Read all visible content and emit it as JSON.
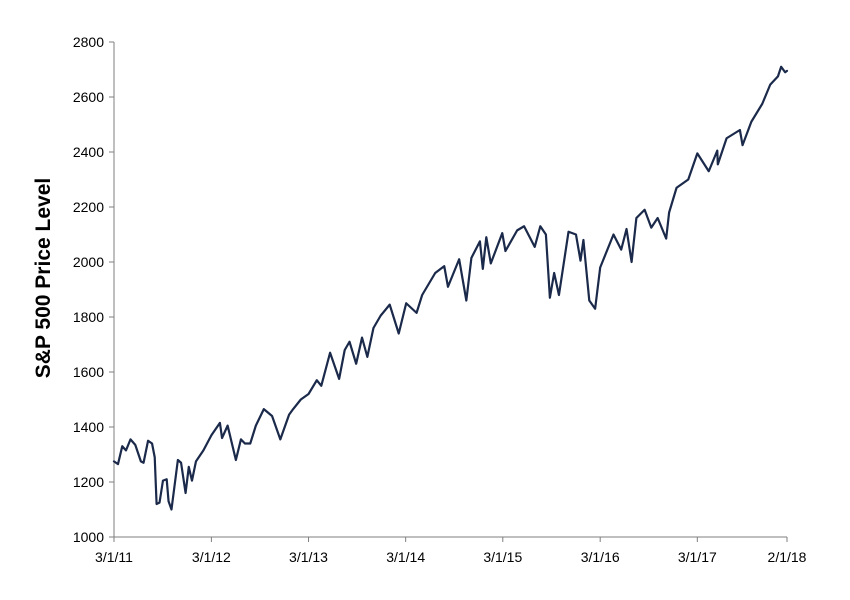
{
  "chart_data": {
    "type": "line",
    "title": "",
    "xlabel": "",
    "ylabel": "S&P 500 Price Level",
    "ylim": [
      1000,
      2800
    ],
    "yticks": [
      1000,
      1200,
      1400,
      1600,
      1800,
      2000,
      2200,
      2400,
      2600,
      2800
    ],
    "xlim": [
      "2011-03-01",
      "2018-02-01"
    ],
    "xticks": [
      {
        "date": "2011-03-01",
        "label": "3/1/11"
      },
      {
        "date": "2012-03-01",
        "label": "3/1/12"
      },
      {
        "date": "2013-03-01",
        "label": "3/1/13"
      },
      {
        "date": "2014-03-01",
        "label": "3/1/14"
      },
      {
        "date": "2015-03-01",
        "label": "3/1/15"
      },
      {
        "date": "2016-03-01",
        "label": "3/1/16"
      },
      {
        "date": "2017-03-01",
        "label": "3/1/17"
      },
      {
        "date": "2018-02-01",
        "label": "2/1/18"
      }
    ],
    "grid": false,
    "legend": "none",
    "series": [
      {
        "color": "#1b2a4a",
        "points": [
          [
            "2011-03-01",
            1275
          ],
          [
            "2011-03-16",
            1265
          ],
          [
            "2011-04-01",
            1330
          ],
          [
            "2011-04-15",
            1315
          ],
          [
            "2011-05-02",
            1355
          ],
          [
            "2011-05-20",
            1335
          ],
          [
            "2011-06-10",
            1275
          ],
          [
            "2011-06-20",
            1270
          ],
          [
            "2011-07-07",
            1350
          ],
          [
            "2011-07-22",
            1340
          ],
          [
            "2011-08-01",
            1290
          ],
          [
            "2011-08-08",
            1120
          ],
          [
            "2011-08-19",
            1125
          ],
          [
            "2011-09-01",
            1205
          ],
          [
            "2011-09-15",
            1210
          ],
          [
            "2011-09-22",
            1130
          ],
          [
            "2011-10-03",
            1100
          ],
          [
            "2011-10-27",
            1280
          ],
          [
            "2011-11-08",
            1270
          ],
          [
            "2011-11-25",
            1160
          ],
          [
            "2011-12-07",
            1255
          ],
          [
            "2011-12-19",
            1205
          ],
          [
            "2012-01-03",
            1275
          ],
          [
            "2012-01-31",
            1315
          ],
          [
            "2012-03-01",
            1370
          ],
          [
            "2012-04-02",
            1415
          ],
          [
            "2012-04-10",
            1360
          ],
          [
            "2012-05-01",
            1405
          ],
          [
            "2012-06-01",
            1280
          ],
          [
            "2012-06-20",
            1355
          ],
          [
            "2012-07-05",
            1340
          ],
          [
            "2012-07-25",
            1340
          ],
          [
            "2012-08-15",
            1405
          ],
          [
            "2012-09-14",
            1465
          ],
          [
            "2012-10-15",
            1440
          ],
          [
            "2012-11-15",
            1355
          ],
          [
            "2012-12-18",
            1445
          ],
          [
            "2013-01-02",
            1465
          ],
          [
            "2013-01-31",
            1500
          ],
          [
            "2013-03-01",
            1520
          ],
          [
            "2013-04-01",
            1570
          ],
          [
            "2013-04-18",
            1550
          ],
          [
            "2013-05-21",
            1670
          ],
          [
            "2013-06-24",
            1575
          ],
          [
            "2013-07-15",
            1680
          ],
          [
            "2013-08-02",
            1710
          ],
          [
            "2013-08-27",
            1630
          ],
          [
            "2013-09-18",
            1725
          ],
          [
            "2013-10-08",
            1655
          ],
          [
            "2013-10-31",
            1760
          ],
          [
            "2013-11-27",
            1805
          ],
          [
            "2013-12-31",
            1845
          ],
          [
            "2014-02-03",
            1740
          ],
          [
            "2014-03-03",
            1850
          ],
          [
            "2014-04-11",
            1815
          ],
          [
            "2014-05-02",
            1880
          ],
          [
            "2014-06-20",
            1960
          ],
          [
            "2014-07-24",
            1985
          ],
          [
            "2014-08-07",
            1910
          ],
          [
            "2014-09-18",
            2010
          ],
          [
            "2014-10-15",
            1860
          ],
          [
            "2014-11-03",
            2015
          ],
          [
            "2014-12-05",
            2075
          ],
          [
            "2014-12-16",
            1975
          ],
          [
            "2014-12-29",
            2090
          ],
          [
            "2015-01-15",
            1995
          ],
          [
            "2015-02-27",
            2105
          ],
          [
            "2015-03-11",
            2040
          ],
          [
            "2015-04-24",
            2115
          ],
          [
            "2015-05-20",
            2130
          ],
          [
            "2015-06-29",
            2055
          ],
          [
            "2015-07-20",
            2130
          ],
          [
            "2015-08-10",
            2100
          ],
          [
            "2015-08-25",
            1870
          ],
          [
            "2015-09-10",
            1960
          ],
          [
            "2015-09-28",
            1880
          ],
          [
            "2015-11-03",
            2110
          ],
          [
            "2015-12-01",
            2100
          ],
          [
            "2015-12-18",
            2005
          ],
          [
            "2015-12-29",
            2080
          ],
          [
            "2016-01-20",
            1860
          ],
          [
            "2016-02-11",
            1830
          ],
          [
            "2016-03-01",
            1980
          ],
          [
            "2016-04-20",
            2100
          ],
          [
            "2016-05-19",
            2045
          ],
          [
            "2016-06-08",
            2120
          ],
          [
            "2016-06-27",
            2000
          ],
          [
            "2016-07-15",
            2160
          ],
          [
            "2016-08-15",
            2190
          ],
          [
            "2016-09-09",
            2125
          ],
          [
            "2016-10-03",
            2160
          ],
          [
            "2016-11-04",
            2085
          ],
          [
            "2016-11-15",
            2180
          ],
          [
            "2016-12-13",
            2270
          ],
          [
            "2017-01-26",
            2300
          ],
          [
            "2017-03-01",
            2395
          ],
          [
            "2017-04-13",
            2330
          ],
          [
            "2017-05-15",
            2405
          ],
          [
            "2017-05-17",
            2355
          ],
          [
            "2017-06-19",
            2450
          ],
          [
            "2017-08-08",
            2480
          ],
          [
            "2017-08-18",
            2425
          ],
          [
            "2017-09-20",
            2510
          ],
          [
            "2017-10-31",
            2575
          ],
          [
            "2017-11-30",
            2645
          ],
          [
            "2017-12-29",
            2675
          ],
          [
            "2018-01-10",
            2710
          ],
          [
            "2018-01-25",
            2690
          ],
          [
            "2018-02-01",
            2695
          ]
        ]
      }
    ]
  }
}
